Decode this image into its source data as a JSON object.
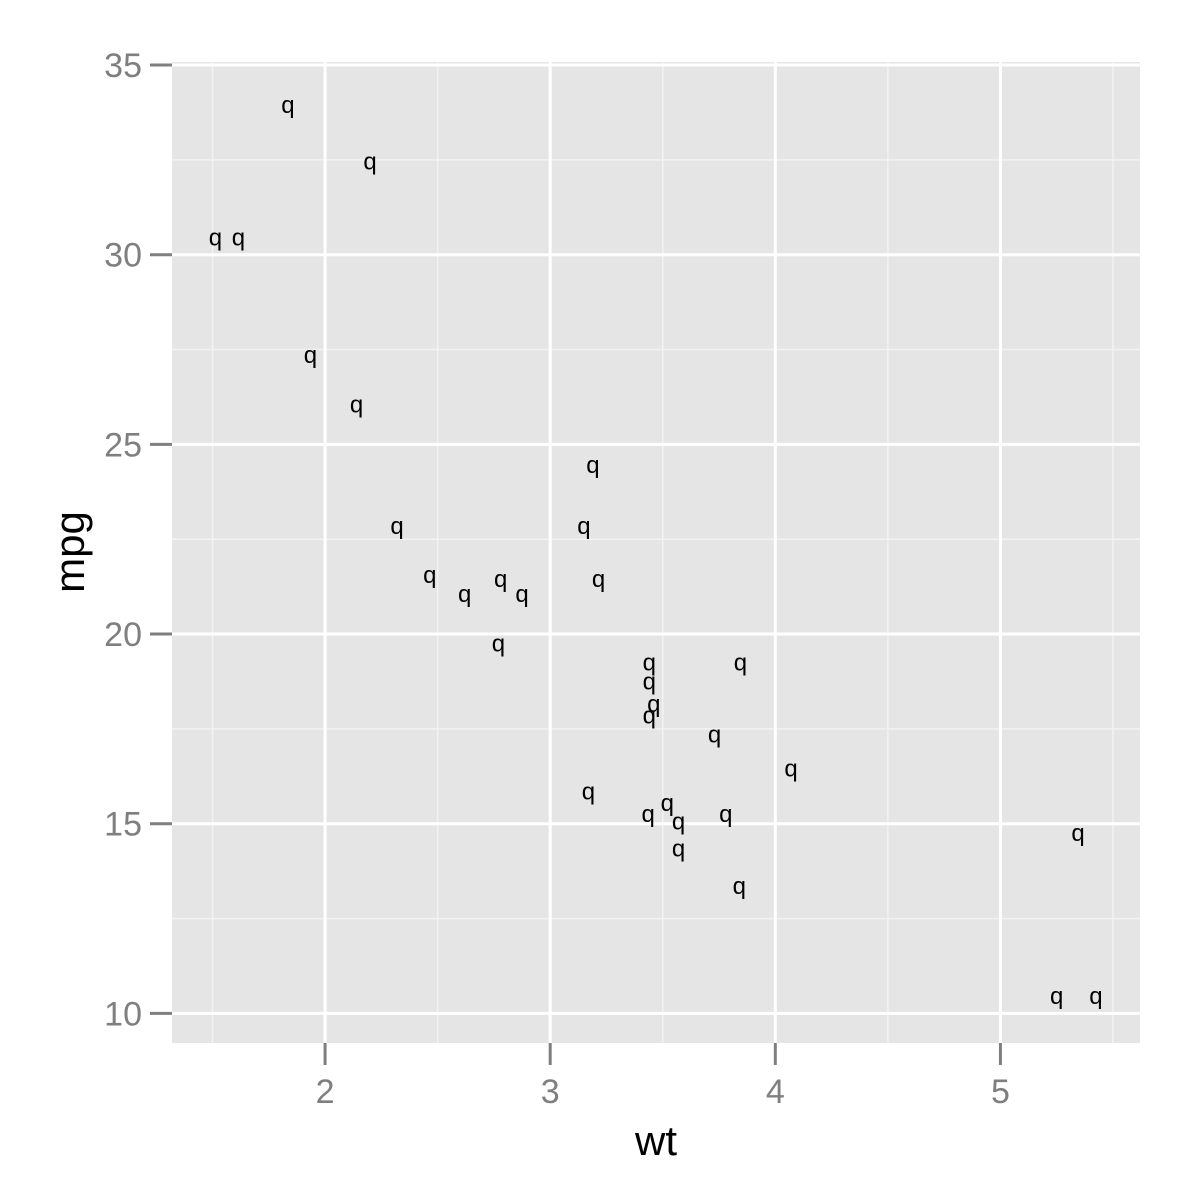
{
  "chart_data": {
    "type": "scatter",
    "title": "",
    "xlabel": "wt",
    "ylabel": "mpg",
    "point_symbol": "q",
    "xlim": [
      1.32,
      5.62
    ],
    "ylim": [
      9.22,
      35.08
    ],
    "x_ticks": [
      {
        "value": 2,
        "label": "2"
      },
      {
        "value": 3,
        "label": "3"
      },
      {
        "value": 4,
        "label": "4"
      },
      {
        "value": 5,
        "label": "5"
      }
    ],
    "y_ticks": [
      {
        "value": 10,
        "label": "10"
      },
      {
        "value": 15,
        "label": "15"
      },
      {
        "value": 20,
        "label": "20"
      },
      {
        "value": 25,
        "label": "25"
      },
      {
        "value": 30,
        "label": "30"
      },
      {
        "value": 35,
        "label": "35"
      }
    ],
    "x_minor_ticks": [
      1.5,
      2.5,
      3.5,
      4.5,
      5.5
    ],
    "y_minor_ticks": [
      12.5,
      17.5,
      22.5,
      27.5,
      32.5
    ],
    "grid": true,
    "colors": {
      "panel": "#e5e5e5",
      "grid_major": "#ffffff",
      "grid_minor": "#f2f2f2",
      "tick_label": "#7f7f7f",
      "tick_mark": "#7f7f7f",
      "point": "#000000",
      "axis_title": "#000000"
    },
    "points": [
      {
        "x": 2.62,
        "y": 21.0
      },
      {
        "x": 2.875,
        "y": 21.0
      },
      {
        "x": 2.32,
        "y": 22.8
      },
      {
        "x": 3.215,
        "y": 21.4
      },
      {
        "x": 3.44,
        "y": 18.7
      },
      {
        "x": 3.46,
        "y": 18.1
      },
      {
        "x": 3.57,
        "y": 14.3
      },
      {
        "x": 3.19,
        "y": 24.4
      },
      {
        "x": 3.15,
        "y": 22.8
      },
      {
        "x": 3.44,
        "y": 19.2
      },
      {
        "x": 3.44,
        "y": 17.8
      },
      {
        "x": 4.07,
        "y": 16.4
      },
      {
        "x": 3.73,
        "y": 17.3
      },
      {
        "x": 3.78,
        "y": 15.2
      },
      {
        "x": 5.25,
        "y": 10.4
      },
      {
        "x": 5.424,
        "y": 10.4
      },
      {
        "x": 5.345,
        "y": 14.7
      },
      {
        "x": 2.2,
        "y": 32.4
      },
      {
        "x": 1.615,
        "y": 30.4
      },
      {
        "x": 1.835,
        "y": 33.9
      },
      {
        "x": 2.465,
        "y": 21.5
      },
      {
        "x": 3.52,
        "y": 15.5
      },
      {
        "x": 3.435,
        "y": 15.2
      },
      {
        "x": 3.84,
        "y": 13.3
      },
      {
        "x": 3.845,
        "y": 19.2
      },
      {
        "x": 1.935,
        "y": 27.3
      },
      {
        "x": 2.14,
        "y": 26.0
      },
      {
        "x": 1.513,
        "y": 30.4
      },
      {
        "x": 3.17,
        "y": 15.8
      },
      {
        "x": 2.77,
        "y": 19.7
      },
      {
        "x": 3.57,
        "y": 15.0
      },
      {
        "x": 2.78,
        "y": 21.4
      }
    ]
  }
}
